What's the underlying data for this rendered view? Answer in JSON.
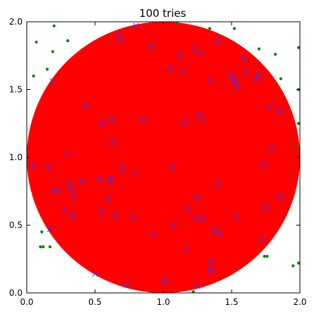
{
  "chart_data": {
    "type": "scatter",
    "title": "100 tries",
    "xlabel": "",
    "ylabel": "",
    "xlim": [
      0.0,
      2.0
    ],
    "ylim": [
      0.0,
      2.0
    ],
    "grid": false,
    "x_ticks": [
      "0.0",
      "0.5",
      "1.0",
      "1.5",
      "2.0"
    ],
    "y_ticks": [
      "0.0",
      "0.5",
      "1.0",
      "1.5",
      "2.0"
    ],
    "x_tick_values": [
      0.0,
      0.5,
      1.0,
      1.5,
      2.0
    ],
    "y_tick_values": [
      0.0,
      0.5,
      1.0,
      1.5,
      2.0
    ],
    "circle": {
      "cx": 1.0,
      "cy": 1.0,
      "r": 1.0,
      "color": "#ff0000"
    },
    "series": [
      {
        "marker": "x",
        "color": "#3333ff",
        "points": [
          [
            0.05,
            0.94
          ],
          [
            0.16,
            0.93
          ],
          [
            0.19,
            1.56
          ],
          [
            0.2,
            0.76
          ],
          [
            0.22,
            0.75
          ],
          [
            0.17,
            0.47
          ],
          [
            0.28,
            0.6
          ],
          [
            0.3,
            1.02
          ],
          [
            0.31,
            0.8
          ],
          [
            0.33,
            0.77
          ],
          [
            0.34,
            0.72
          ],
          [
            0.34,
            0.57
          ],
          [
            0.4,
            0.82
          ],
          [
            0.43,
            1.38
          ],
          [
            0.5,
            0.14
          ],
          [
            0.53,
            0.84
          ],
          [
            0.55,
            1.25
          ],
          [
            0.55,
            0.6
          ],
          [
            0.6,
            0.7
          ],
          [
            0.61,
            0.84
          ],
          [
            0.61,
            0.83
          ],
          [
            0.62,
            1.28
          ],
          [
            0.63,
            1.11
          ],
          [
            0.65,
            0.57
          ],
          [
            0.67,
            1.9
          ],
          [
            0.69,
            1.87
          ],
          [
            0.7,
            0.92
          ],
          [
            0.73,
            0.06
          ],
          [
            0.78,
            0.56
          ],
          [
            0.79,
            0.88
          ],
          [
            0.8,
            1.97
          ],
          [
            0.85,
            1.27
          ],
          [
            0.92,
            1.82
          ],
          [
            0.93,
            0.43
          ],
          [
            1.01,
            0.09
          ],
          [
            1.05,
            1.66
          ],
          [
            1.07,
            0.93
          ],
          [
            1.08,
            0.5
          ],
          [
            1.12,
            1.75
          ],
          [
            1.15,
            1.64
          ],
          [
            1.16,
            1.26
          ],
          [
            1.17,
            0.32
          ],
          [
            1.18,
            0.62
          ],
          [
            1.23,
            1.81
          ],
          [
            1.24,
            0.7
          ],
          [
            1.24,
            0.55
          ],
          [
            1.25,
            0.05
          ],
          [
            1.26,
            1.77
          ],
          [
            1.26,
            1.32
          ],
          [
            1.29,
            1.28
          ],
          [
            1.29,
            0.55
          ],
          [
            1.34,
            1.57
          ],
          [
            1.34,
            0.18
          ],
          [
            1.35,
            0.23
          ],
          [
            1.35,
            0.16
          ],
          [
            1.38,
            0.47
          ],
          [
            1.4,
            1.86
          ],
          [
            1.4,
            0.8
          ],
          [
            1.41,
            0.44
          ],
          [
            1.5,
            1.6
          ],
          [
            1.51,
            1.58
          ],
          [
            1.53,
            1.56
          ],
          [
            1.54,
            1.52
          ],
          [
            1.54,
            0.56
          ],
          [
            1.59,
            1.73
          ],
          [
            1.61,
            1.63
          ],
          [
            1.68,
            1.58
          ],
          [
            1.7,
            1.61
          ],
          [
            1.72,
            0.39
          ],
          [
            1.73,
            0.95
          ],
          [
            1.75,
            0.63
          ],
          [
            1.78,
            1.37
          ],
          [
            1.79,
            1.07
          ],
          [
            1.85,
            1.34
          ],
          [
            1.86,
            0.71
          ]
        ]
      },
      {
        "marker": "o",
        "color": "#008000",
        "points": [
          [
            0.05,
            1.6
          ],
          [
            0.07,
            1.85
          ],
          [
            0.1,
            0.34
          ],
          [
            0.11,
            0.45
          ],
          [
            0.12,
            0.34
          ],
          [
            0.15,
            1.65
          ],
          [
            0.17,
            0.34
          ],
          [
            0.19,
            1.78
          ],
          [
            0.2,
            1.97
          ],
          [
            0.3,
            1.86
          ],
          [
            1.34,
            1.95
          ],
          [
            1.52,
            1.95
          ],
          [
            1.7,
            1.8
          ],
          [
            1.74,
            0.27
          ],
          [
            1.76,
            0.27
          ],
          [
            1.82,
            1.76
          ],
          [
            1.86,
            1.58
          ],
          [
            1.95,
            0.2
          ],
          [
            1.99,
            1.5
          ],
          [
            1.99,
            1.25
          ],
          [
            1.99,
            0.22
          ],
          [
            1.98,
            1.08
          ],
          [
            1.99,
            1.81
          ],
          [
            1.22,
            0.01
          ],
          [
            1.1,
            1.99
          ]
        ]
      }
    ]
  }
}
